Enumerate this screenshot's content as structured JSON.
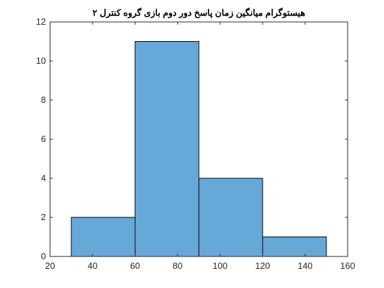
{
  "chart_data": {
    "type": "bar",
    "title": "هیستوگرام میانگین زمان پاسخ دور دوم بازی گروه کنترل ۲",
    "xlabel": "",
    "ylabel": "",
    "bins": [
      {
        "start": 30,
        "end": 60,
        "value": 2
      },
      {
        "start": 60,
        "end": 90,
        "value": 11
      },
      {
        "start": 90,
        "end": 120,
        "value": 4
      },
      {
        "start": 120,
        "end": 150,
        "value": 1
      }
    ],
    "xlim": [
      20,
      160
    ],
    "ylim": [
      0,
      12
    ],
    "xticks": [
      20,
      40,
      60,
      80,
      100,
      120,
      140,
      160
    ],
    "yticks": [
      0,
      2,
      4,
      6,
      8,
      10,
      12
    ],
    "bar_color": "#66a8d8",
    "edge_color": "#000000",
    "grid": false,
    "box": true
  }
}
